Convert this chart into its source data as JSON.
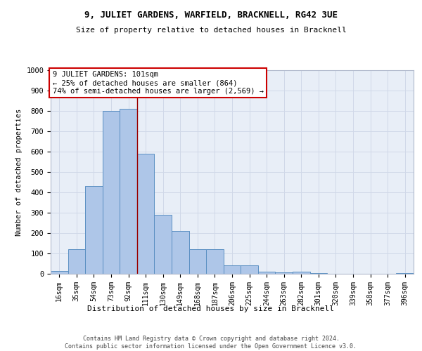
{
  "title": "9, JULIET GARDENS, WARFIELD, BRACKNELL, RG42 3UE",
  "subtitle": "Size of property relative to detached houses in Bracknell",
  "xlabel": "Distribution of detached houses by size in Bracknell",
  "ylabel": "Number of detached properties",
  "footer_line1": "Contains HM Land Registry data © Crown copyright and database right 2024.",
  "footer_line2": "Contains public sector information licensed under the Open Government Licence v3.0.",
  "categories": [
    "16sqm",
    "35sqm",
    "54sqm",
    "73sqm",
    "92sqm",
    "111sqm",
    "130sqm",
    "149sqm",
    "168sqm",
    "187sqm",
    "206sqm",
    "225sqm",
    "244sqm",
    "263sqm",
    "282sqm",
    "301sqm",
    "320sqm",
    "339sqm",
    "358sqm",
    "377sqm",
    "396sqm"
  ],
  "values": [
    15,
    120,
    430,
    800,
    810,
    590,
    290,
    210,
    120,
    120,
    40,
    40,
    10,
    8,
    10,
    5,
    0,
    0,
    0,
    0,
    5
  ],
  "bar_color": "#aec6e8",
  "bar_edge_color": "#5a8fc2",
  "property_bin_index": 4,
  "annotation_title": "9 JULIET GARDENS: 101sqm",
  "annotation_line2": "← 25% of detached houses are smaller (864)",
  "annotation_line3": "74% of semi-detached houses are larger (2,569) →",
  "annotation_box_color": "#ffffff",
  "annotation_box_edge": "#cc0000",
  "vline_color": "#990000",
  "grid_color": "#d0d8e8",
  "background_color": "#e8eef7",
  "ylim": [
    0,
    1000
  ],
  "yticks": [
    0,
    100,
    200,
    300,
    400,
    500,
    600,
    700,
    800,
    900,
    1000
  ]
}
